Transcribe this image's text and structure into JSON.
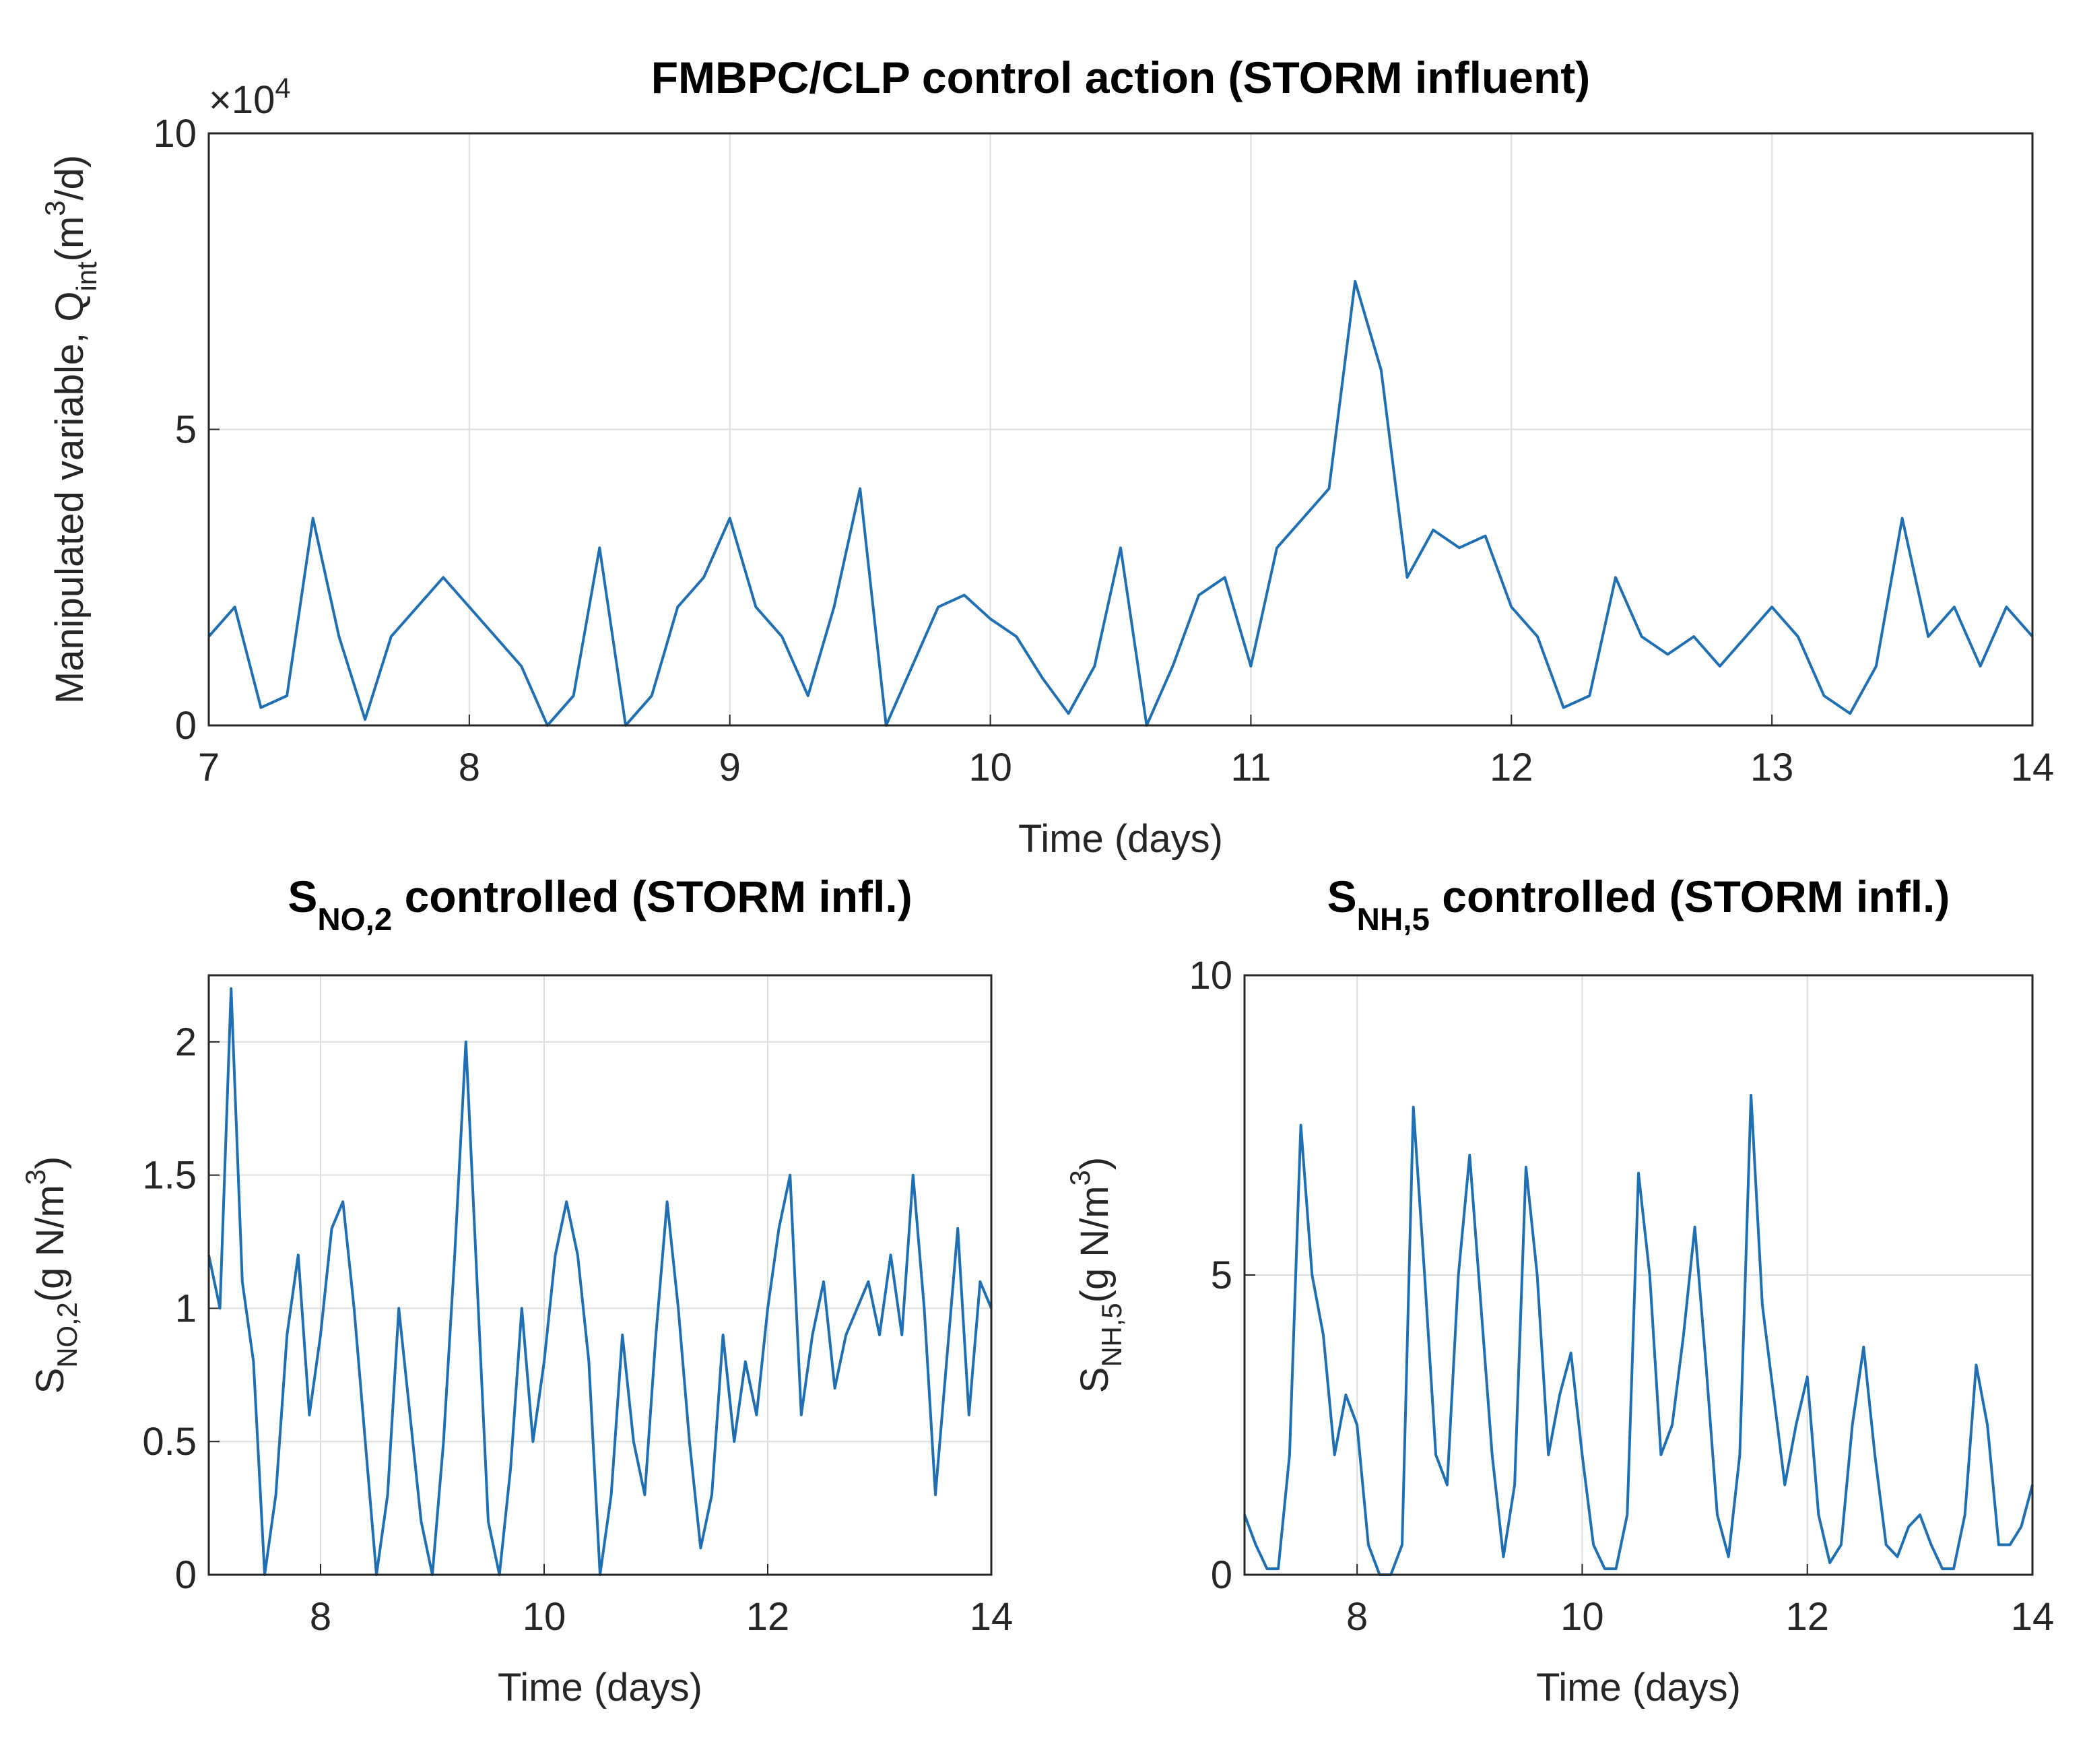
{
  "chart_data": [
    {
      "type": "line",
      "title_parts": [
        {
          "text": "FMBPC/CLP control action (STORM influent)"
        }
      ],
      "xlabel": "Time (days)",
      "ylabel_parts": [
        {
          "text": "Manipulated variable, Q"
        },
        {
          "text": "int",
          "sub": true
        },
        {
          "text": "(m"
        },
        {
          "text": "3",
          "sup": true
        },
        {
          "text": "/d)"
        }
      ],
      "exponent_parts": [
        {
          "text": "×10"
        },
        {
          "text": "4",
          "sup": true
        }
      ],
      "xlim": [
        7,
        14
      ],
      "xticks": [
        7,
        8,
        9,
        10,
        11,
        12,
        13,
        14
      ],
      "ylim": [
        0,
        100000
      ],
      "yticks": [
        {
          "value": 0,
          "label": "0"
        },
        {
          "value": 50000,
          "label": "5"
        },
        {
          "value": 100000,
          "label": "10"
        }
      ],
      "grid": true,
      "color": "#1f6fb4",
      "x": [
        7,
        7.1,
        7.2,
        7.3,
        7.4,
        7.5,
        7.6,
        7.7,
        7.8,
        7.9,
        8,
        8.1,
        8.2,
        8.3,
        8.4,
        8.5,
        8.6,
        8.7,
        8.8,
        8.9,
        9,
        9.1,
        9.2,
        9.3,
        9.4,
        9.5,
        9.6,
        9.7,
        9.8,
        9.9,
        10,
        10.1,
        10.2,
        10.3,
        10.4,
        10.5,
        10.6,
        10.7,
        10.8,
        10.9,
        11,
        11.1,
        11.2,
        11.3,
        11.4,
        11.5,
        11.6,
        11.7,
        11.8,
        11.9,
        12,
        12.1,
        12.2,
        12.3,
        12.4,
        12.5,
        12.6,
        12.7,
        12.8,
        12.9,
        13,
        13.1,
        13.2,
        13.3,
        13.4,
        13.5,
        13.6,
        13.7,
        13.8,
        13.9,
        14
      ],
      "values": [
        15000,
        20000,
        3000,
        5000,
        35000,
        15000,
        1000,
        15000,
        20000,
        25000,
        20000,
        15000,
        10000,
        0,
        5000,
        30000,
        0,
        5000,
        20000,
        25000,
        35000,
        20000,
        15000,
        5000,
        20000,
        40000,
        0,
        10000,
        20000,
        22000,
        18000,
        15000,
        8000,
        2000,
        10000,
        30000,
        0,
        10000,
        22000,
        25000,
        10000,
        30000,
        35000,
        40000,
        75000,
        60000,
        25000,
        33000,
        30000,
        32000,
        20000,
        15000,
        3000,
        5000,
        25000,
        15000,
        12000,
        15000,
        10000,
        15000,
        20000,
        15000,
        5000,
        2000,
        10000,
        35000,
        15000,
        20000,
        10000,
        20000,
        15000
      ]
    },
    {
      "type": "line",
      "title_parts": [
        {
          "text": "S"
        },
        {
          "text": "NO,2",
          "sub": true
        },
        {
          "text": " controlled (STORM infl.)"
        }
      ],
      "xlabel": "Time (days)",
      "ylabel_parts": [
        {
          "text": "S"
        },
        {
          "text": "NO,2",
          "sub": true
        },
        {
          "text": "(g N/m"
        },
        {
          "text": "3",
          "sup": true
        },
        {
          "text": ")"
        }
      ],
      "xlim": [
        7,
        14
      ],
      "xticks": [
        8,
        10,
        12,
        14
      ],
      "ylim": [
        0,
        2.25
      ],
      "yticks": [
        0,
        0.5,
        1,
        1.5,
        2
      ],
      "grid": true,
      "color": "#1f6fb4",
      "x": [
        7,
        7.1,
        7.2,
        7.3,
        7.4,
        7.5,
        7.6,
        7.7,
        7.8,
        7.9,
        8,
        8.1,
        8.2,
        8.3,
        8.4,
        8.5,
        8.6,
        8.7,
        8.8,
        8.9,
        9,
        9.1,
        9.2,
        9.3,
        9.4,
        9.5,
        9.6,
        9.7,
        9.8,
        9.9,
        10,
        10.1,
        10.2,
        10.3,
        10.4,
        10.5,
        10.6,
        10.7,
        10.8,
        10.9,
        11,
        11.1,
        11.2,
        11.3,
        11.4,
        11.5,
        11.6,
        11.7,
        11.8,
        11.9,
        12,
        12.1,
        12.2,
        12.3,
        12.4,
        12.5,
        12.6,
        12.7,
        12.8,
        12.9,
        13,
        13.1,
        13.2,
        13.3,
        13.4,
        13.5,
        13.6,
        13.7,
        13.8,
        13.9,
        14
      ],
      "values": [
        1.2,
        1.0,
        2.2,
        1.1,
        0.8,
        0,
        0.3,
        0.9,
        1.2,
        0.6,
        0.9,
        1.3,
        1.4,
        1.0,
        0.5,
        0,
        0.3,
        1.0,
        0.6,
        0.2,
        0,
        0.5,
        1.2,
        2.0,
        1.1,
        0.2,
        0,
        0.4,
        1.0,
        0.5,
        0.8,
        1.2,
        1.4,
        1.2,
        0.8,
        0,
        0.3,
        0.9,
        0.5,
        0.3,
        0.9,
        1.4,
        1.0,
        0.5,
        0.1,
        0.3,
        0.9,
        0.5,
        0.8,
        0.6,
        1.0,
        1.3,
        1.5,
        0.6,
        0.9,
        1.1,
        0.7,
        0.9,
        1.0,
        1.1,
        0.9,
        1.2,
        0.9,
        1.5,
        1.0,
        0.3,
        0.8,
        1.3,
        0.6,
        1.1,
        1.0
      ]
    },
    {
      "type": "line",
      "title_parts": [
        {
          "text": "S"
        },
        {
          "text": "NH,5",
          "sub": true
        },
        {
          "text": " controlled (STORM infl.)"
        }
      ],
      "xlabel": "Time (days)",
      "ylabel_parts": [
        {
          "text": "S"
        },
        {
          "text": "NH,5",
          "sub": true
        },
        {
          "text": "(g N/m"
        },
        {
          "text": "3",
          "sup": true
        },
        {
          "text": ")"
        }
      ],
      "xlim": [
        7,
        14
      ],
      "xticks": [
        8,
        10,
        12,
        14
      ],
      "ylim": [
        0,
        10
      ],
      "yticks": [
        0,
        5,
        10
      ],
      "grid": true,
      "color": "#1f6fb4",
      "x": [
        7,
        7.1,
        7.2,
        7.3,
        7.4,
        7.5,
        7.6,
        7.7,
        7.8,
        7.9,
        8,
        8.1,
        8.2,
        8.3,
        8.4,
        8.5,
        8.6,
        8.7,
        8.8,
        8.9,
        9,
        9.1,
        9.2,
        9.3,
        9.4,
        9.5,
        9.6,
        9.7,
        9.8,
        9.9,
        10,
        10.1,
        10.2,
        10.3,
        10.4,
        10.5,
        10.6,
        10.7,
        10.8,
        10.9,
        11,
        11.1,
        11.2,
        11.3,
        11.4,
        11.5,
        11.6,
        11.7,
        11.8,
        11.9,
        12,
        12.1,
        12.2,
        12.3,
        12.4,
        12.5,
        12.6,
        12.7,
        12.8,
        12.9,
        13,
        13.1,
        13.2,
        13.3,
        13.4,
        13.5,
        13.6,
        13.7,
        13.8,
        13.9,
        14
      ],
      "values": [
        1.0,
        0.5,
        0.1,
        0.1,
        2.0,
        7.5,
        5.0,
        4.0,
        2.0,
        3.0,
        2.5,
        0.5,
        0,
        0,
        0.5,
        7.8,
        5.0,
        2.0,
        1.5,
        5.0,
        7.0,
        4.5,
        2.0,
        0.3,
        1.5,
        6.8,
        5.0,
        2.0,
        3.0,
        3.7,
        2.0,
        0.5,
        0.1,
        0.1,
        1.0,
        6.7,
        5.0,
        2.0,
        2.5,
        4.0,
        5.8,
        3.5,
        1.0,
        0.3,
        2.0,
        8.0,
        4.5,
        3.0,
        1.5,
        2.5,
        3.3,
        1.0,
        0.2,
        0.5,
        2.5,
        3.8,
        2.0,
        0.5,
        0.3,
        0.8,
        1.0,
        0.5,
        0.1,
        0.1,
        1.0,
        3.5,
        2.5,
        0.5,
        0.5,
        0.8,
        1.5
      ]
    }
  ]
}
